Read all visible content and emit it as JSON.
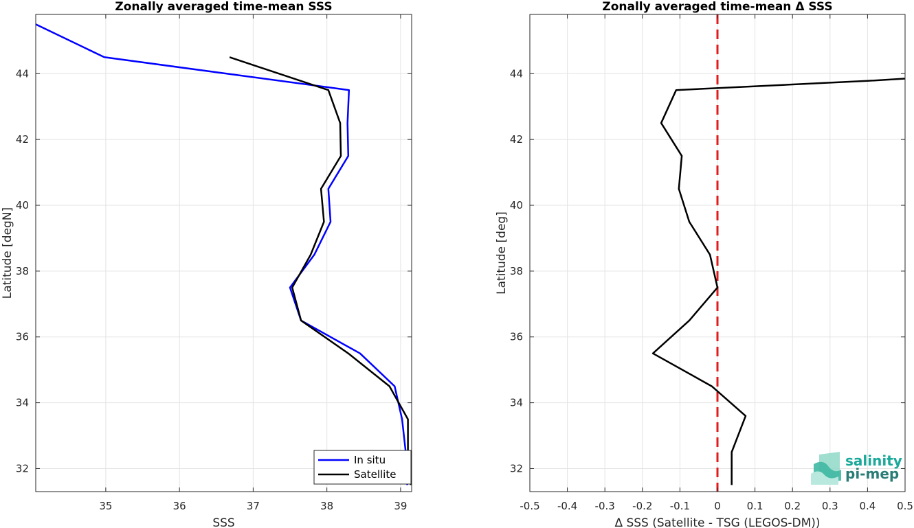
{
  "chart_data": [
    {
      "type": "line",
      "title": "Zonally averaged time-mean SSS",
      "xlabel": "SSS",
      "ylabel": "Latitude [degN]",
      "xlim": [
        34.05,
        39.15
      ],
      "ylim": [
        31.3,
        45.8
      ],
      "xticks": [
        35,
        36,
        37,
        38,
        39
      ],
      "yticks": [
        32,
        34,
        36,
        38,
        40,
        42,
        44
      ],
      "grid": true,
      "legend": "bottom-right",
      "series": [
        {
          "name": "In situ",
          "color": "#0000ff",
          "points": [
            [
              34.05,
              45.5
            ],
            [
              34.98,
              44.5
            ],
            [
              38.3,
              43.5
            ],
            [
              38.28,
              42.5
            ],
            [
              38.29,
              41.5
            ],
            [
              38.02,
              40.5
            ],
            [
              38.05,
              39.5
            ],
            [
              37.83,
              38.5
            ],
            [
              37.5,
              37.5
            ],
            [
              37.65,
              36.5
            ],
            [
              38.45,
              35.5
            ],
            [
              38.92,
              34.5
            ],
            [
              39.02,
              33.5
            ],
            [
              39.07,
              32.5
            ],
            [
              39.09,
              31.5
            ]
          ]
        },
        {
          "name": "Satellite",
          "color": "#000000",
          "points": [
            [
              36.68,
              44.5
            ],
            [
              38.02,
              43.5
            ],
            [
              38.18,
              42.5
            ],
            [
              38.19,
              41.5
            ],
            [
              37.92,
              40.5
            ],
            [
              37.96,
              39.5
            ],
            [
              37.78,
              38.5
            ],
            [
              37.53,
              37.5
            ],
            [
              37.65,
              36.5
            ],
            [
              38.29,
              35.5
            ],
            [
              38.85,
              34.5
            ],
            [
              39.1,
              33.5
            ],
            [
              39.1,
              32.5
            ],
            [
              39.14,
              31.5
            ]
          ]
        }
      ]
    },
    {
      "type": "line",
      "title": "Zonally averaged time-mean Δ SSS",
      "xlabel": "Δ SSS (Satellite - TSG (LEGOS-DM))",
      "ylabel": "Latitude [deg]",
      "xlim": [
        -0.5,
        0.5
      ],
      "ylim": [
        31.3,
        45.8
      ],
      "xticks": [
        -0.5,
        -0.4,
        -0.3,
        -0.2,
        -0.1,
        0,
        0.1,
        0.2,
        0.3,
        0.4,
        0.5
      ],
      "xticklabels": [
        "-0.5",
        "-0.4",
        "-0.3",
        "-0.2",
        "-0.1",
        "0",
        "0.1",
        "0.2",
        "0.3",
        "0.4",
        "0.5"
      ],
      "yticks": [
        32,
        34,
        36,
        38,
        40,
        42,
        44
      ],
      "grid": true,
      "reference_line": {
        "x": 0,
        "color": "#e31a1c",
        "style": "dashed"
      },
      "series": [
        {
          "color": "#000000",
          "points": [
            [
              0.5,
              43.85
            ],
            [
              0.4,
              43.78
            ],
            [
              -0.11,
              43.5
            ],
            [
              -0.15,
              42.5
            ],
            [
              -0.095,
              41.5
            ],
            [
              -0.103,
              40.5
            ],
            [
              -0.075,
              39.5
            ],
            [
              -0.02,
              38.5
            ],
            [
              0.0,
              37.5
            ],
            [
              -0.075,
              36.5
            ],
            [
              -0.172,
              35.5
            ],
            [
              -0.015,
              34.5
            ],
            [
              0.075,
              33.6
            ],
            [
              0.038,
              32.5
            ],
            [
              0.038,
              31.5
            ]
          ]
        }
      ]
    }
  ],
  "legend": {
    "items": [
      {
        "label": "In situ",
        "color": "#0000ff"
      },
      {
        "label": "Satellite",
        "color": "#000000"
      }
    ]
  },
  "logo": {
    "line1": "salinity",
    "line2": "pi-mep"
  }
}
